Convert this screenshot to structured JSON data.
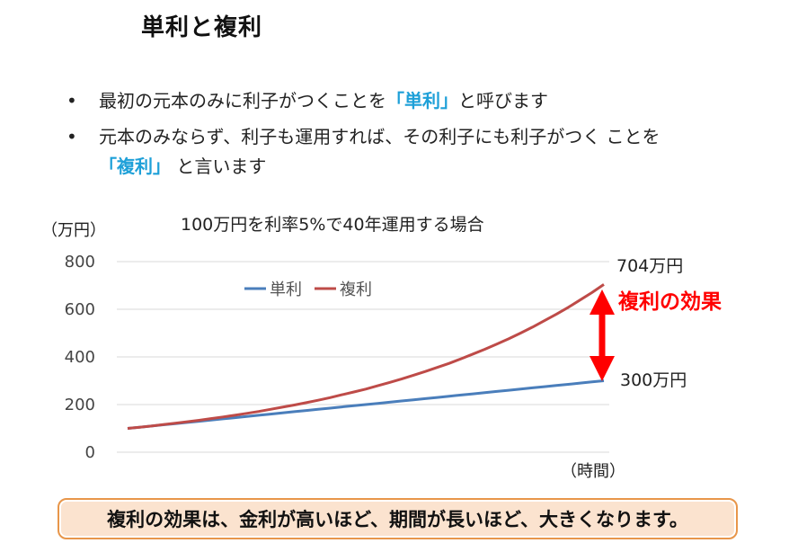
{
  "slide": {
    "title": "単利と複利",
    "bullets": [
      {
        "dot": "•",
        "before": "最初の元本のみに利子がつくことを",
        "term": "「単利」",
        "after": "と呼びます"
      },
      {
        "dot": "•",
        "before": "元本のみならず、利子も運用すれば、その利子にも利子がつく ことを",
        "term": "「複利」",
        "after": " と言います"
      }
    ],
    "summary": "複利の効果は、金利が高いほど、期間が長いほど、大きくなります。"
  },
  "chart_data": {
    "type": "line",
    "title": "100万円を利率5%で40年運用する場合",
    "ylabel": "（万円）",
    "xlabel": "（時間）",
    "ylim": [
      0,
      800
    ],
    "yticks": [
      0,
      200,
      400,
      600,
      800
    ],
    "grid": true,
    "legend_position": "top-left",
    "x": [
      0,
      1,
      2,
      3,
      4,
      5,
      6,
      7,
      8,
      9,
      10,
      11,
      12,
      13,
      14,
      15,
      16,
      17,
      18,
      19,
      20,
      21,
      22,
      23,
      24,
      25,
      26,
      27,
      28,
      29,
      30,
      31,
      32,
      33,
      34,
      35,
      36,
      37,
      38,
      39,
      40
    ],
    "series": [
      {
        "name": "単利",
        "color": "#4a7ebb",
        "values": [
          100,
          105,
          110,
          115,
          120,
          125,
          130,
          135,
          140,
          145,
          150,
          155,
          160,
          165,
          170,
          175,
          180,
          185,
          190,
          195,
          200,
          205,
          210,
          215,
          220,
          225,
          230,
          235,
          240,
          245,
          250,
          255,
          260,
          265,
          270,
          275,
          280,
          285,
          290,
          295,
          300
        ]
      },
      {
        "name": "複利",
        "color": "#be4b48",
        "values": [
          100,
          105,
          110,
          116,
          122,
          128,
          134,
          141,
          148,
          155,
          163,
          171,
          180,
          189,
          198,
          208,
          218,
          229,
          241,
          253,
          265,
          279,
          293,
          307,
          323,
          339,
          356,
          373,
          392,
          412,
          432,
          454,
          476,
          500,
          525,
          552,
          579,
          608,
          639,
          670,
          704
        ]
      }
    ],
    "annotations": {
      "compound_end": "704万円",
      "simple_end": "300万円",
      "effect": "複利の効果"
    },
    "colors": {
      "effect": "#ff0000",
      "grid": "#d9d9d9",
      "axis": "#d9d9d9"
    }
  }
}
